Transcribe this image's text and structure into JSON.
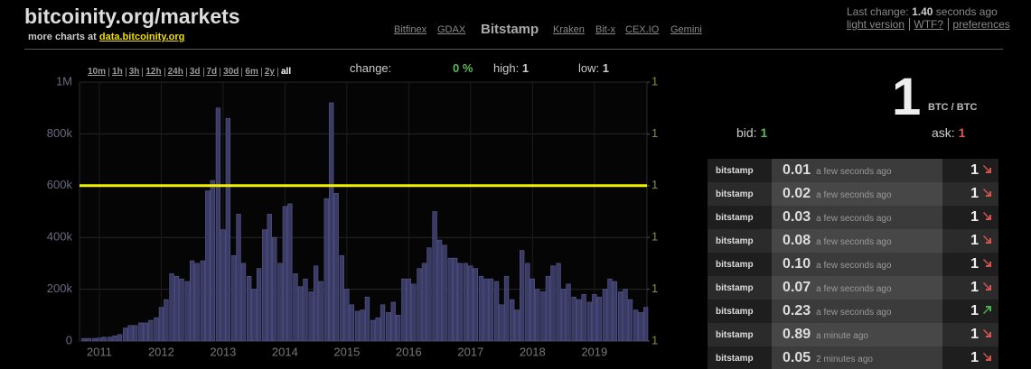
{
  "header": {
    "title": "bitcoinity.org/markets",
    "more_charts": "more charts at",
    "more_charts_link": "data.bitcoinity.org",
    "exchanges": [
      "Bitfinex",
      "GDAX",
      "Bitstamp",
      "Kraken",
      "Bit-x",
      "CEX.IO",
      "Gemini"
    ],
    "last_change_label": "Last change:",
    "last_change_value": "1.40",
    "last_change_unit": "seconds ago",
    "links": [
      "light version",
      "WTF?",
      "preferences"
    ]
  },
  "timespans": [
    "10m",
    "1h",
    "3h",
    "12h",
    "24h",
    "3d",
    "7d",
    "30d",
    "6m",
    "2y",
    "all"
  ],
  "stats": {
    "change_label": "change:",
    "change_value": "0 %",
    "high_label": "high:",
    "high_value": "1",
    "low_label": "low:",
    "low_value": "1"
  },
  "ticker": {
    "price": "1",
    "unit": "BTC / BTC",
    "bid_label": "bid:",
    "bid_value": "1",
    "ask_label": "ask:",
    "ask_value": "1"
  },
  "trades": [
    [
      "bitstamp",
      "0.01",
      "a few seconds ago",
      "1"
    ],
    [
      "bitstamp",
      "0.02",
      "a few seconds ago",
      "1"
    ],
    [
      "bitstamp",
      "0.03",
      "a few seconds ago",
      "1"
    ],
    [
      "bitstamp",
      "0.08",
      "a few seconds ago",
      "1"
    ],
    [
      "bitstamp",
      "0.10",
      "a few seconds ago",
      "1"
    ],
    [
      "bitstamp",
      "0.07",
      "a few seconds ago",
      "1"
    ],
    [
      "bitstamp",
      "0.23",
      "a few seconds ago",
      "1"
    ],
    [
      "bitstamp",
      "0.89",
      "a minute ago",
      "1"
    ],
    [
      "bitstamp",
      "0.05",
      "2 minutes ago",
      "1"
    ]
  ],
  "chart_data": {
    "type": "bar",
    "grid": true,
    "xlim": [
      2010.68,
      2019.85
    ],
    "xticks": [
      2011,
      2012,
      2013,
      2014,
      2015,
      2016,
      2017,
      2018,
      2019
    ],
    "ylim": [
      0,
      1000000
    ],
    "yticks": [
      0,
      {
        "value": 200000,
        "label": "200k"
      },
      {
        "value": 400000,
        "label": "400k"
      },
      {
        "value": 600000,
        "label": "600k"
      },
      {
        "value": 800000,
        "label": "800k"
      },
      {
        "value": 1000000,
        "label": "1M"
      }
    ],
    "y2lim": [
      0.9994,
      1.0004
    ],
    "y2ticks": [
      {
        "value": 0.9994,
        "label": "1"
      },
      {
        "value": 0.9996,
        "label": "1"
      },
      {
        "value": 0.9998,
        "label": "1"
      },
      1,
      {
        "value": 1.0002,
        "label": "1"
      },
      {
        "value": 1.0004,
        "label": "1"
      }
    ],
    "x": [
      2010.75,
      2010.83,
      2010.92,
      2011,
      2011.08,
      2011.17,
      2011.25,
      2011.33,
      2011.42,
      2011.5,
      2011.58,
      2011.67,
      2011.75,
      2011.83,
      2011.92,
      2012,
      2012.08,
      2012.17,
      2012.25,
      2012.33,
      2012.42,
      2012.5,
      2012.58,
      2012.67,
      2012.75,
      2012.83,
      2012.92,
      2013,
      2013.08,
      2013.17,
      2013.25,
      2013.33,
      2013.42,
      2013.5,
      2013.58,
      2013.67,
      2013.75,
      2013.83,
      2013.92,
      2014,
      2014.08,
      2014.17,
      2014.25,
      2014.33,
      2014.42,
      2014.5,
      2014.58,
      2014.67,
      2014.75,
      2014.83,
      2014.92,
      2015,
      2015.08,
      2015.17,
      2015.25,
      2015.33,
      2015.42,
      2015.5,
      2015.58,
      2015.67,
      2015.75,
      2015.83,
      2015.92,
      2016,
      2016.08,
      2016.17,
      2016.25,
      2016.33,
      2016.42,
      2016.5,
      2016.58,
      2016.67,
      2016.75,
      2016.83,
      2016.92,
      2017,
      2017.08,
      2017.17,
      2017.25,
      2017.33,
      2017.42,
      2017.5,
      2017.58,
      2017.67,
      2017.75,
      2017.83,
      2017.92,
      2018,
      2018.08,
      2018.17,
      2018.25,
      2018.33,
      2018.42,
      2018.5,
      2018.58,
      2018.67,
      2018.75,
      2018.83,
      2018.92,
      2019,
      2019.08,
      2019.17,
      2019.25,
      2019.33,
      2019.42,
      2019.5,
      2019.58,
      2019.67,
      2019.75,
      2019.83
    ],
    "series": [
      {
        "type": "bar",
        "color": "#3a3a66",
        "values": [
          10000,
          10000,
          10000,
          12000,
          15000,
          15000,
          20000,
          25000,
          50000,
          60000,
          60000,
          70000,
          70000,
          80000,
          90000,
          130000,
          160000,
          260000,
          250000,
          240000,
          230000,
          310000,
          300000,
          310000,
          580000,
          620000,
          900000,
          430000,
          860000,
          330000,
          490000,
          300000,
          250000,
          200000,
          280000,
          430000,
          490000,
          400000,
          300000,
          520000,
          530000,
          260000,
          210000,
          240000,
          190000,
          290000,
          230000,
          550000,
          920000,
          570000,
          330000,
          200000,
          140000,
          115000,
          120000,
          170000,
          80000,
          90000,
          140000,
          110000,
          150000,
          100000,
          240000,
          240000,
          220000,
          280000,
          300000,
          360000,
          500000,
          390000,
          370000,
          320000,
          320000,
          300000,
          300000,
          290000,
          280000,
          250000,
          240000,
          240000,
          230000,
          140000,
          250000,
          160000,
          120000,
          350000,
          300000,
          240000,
          200000,
          190000,
          250000,
          290000,
          300000,
          200000,
          220000,
          170000,
          160000,
          180000,
          150000,
          180000,
          170000,
          200000,
          240000,
          230000,
          190000,
          200000,
          160000,
          120000,
          110000,
          130000
        ]
      },
      {
        "type": "line",
        "axis": "y2",
        "color": "#f2f200",
        "x": [
          2010.68,
          2019.85
        ],
        "values": [
          1,
          1
        ]
      }
    ]
  }
}
